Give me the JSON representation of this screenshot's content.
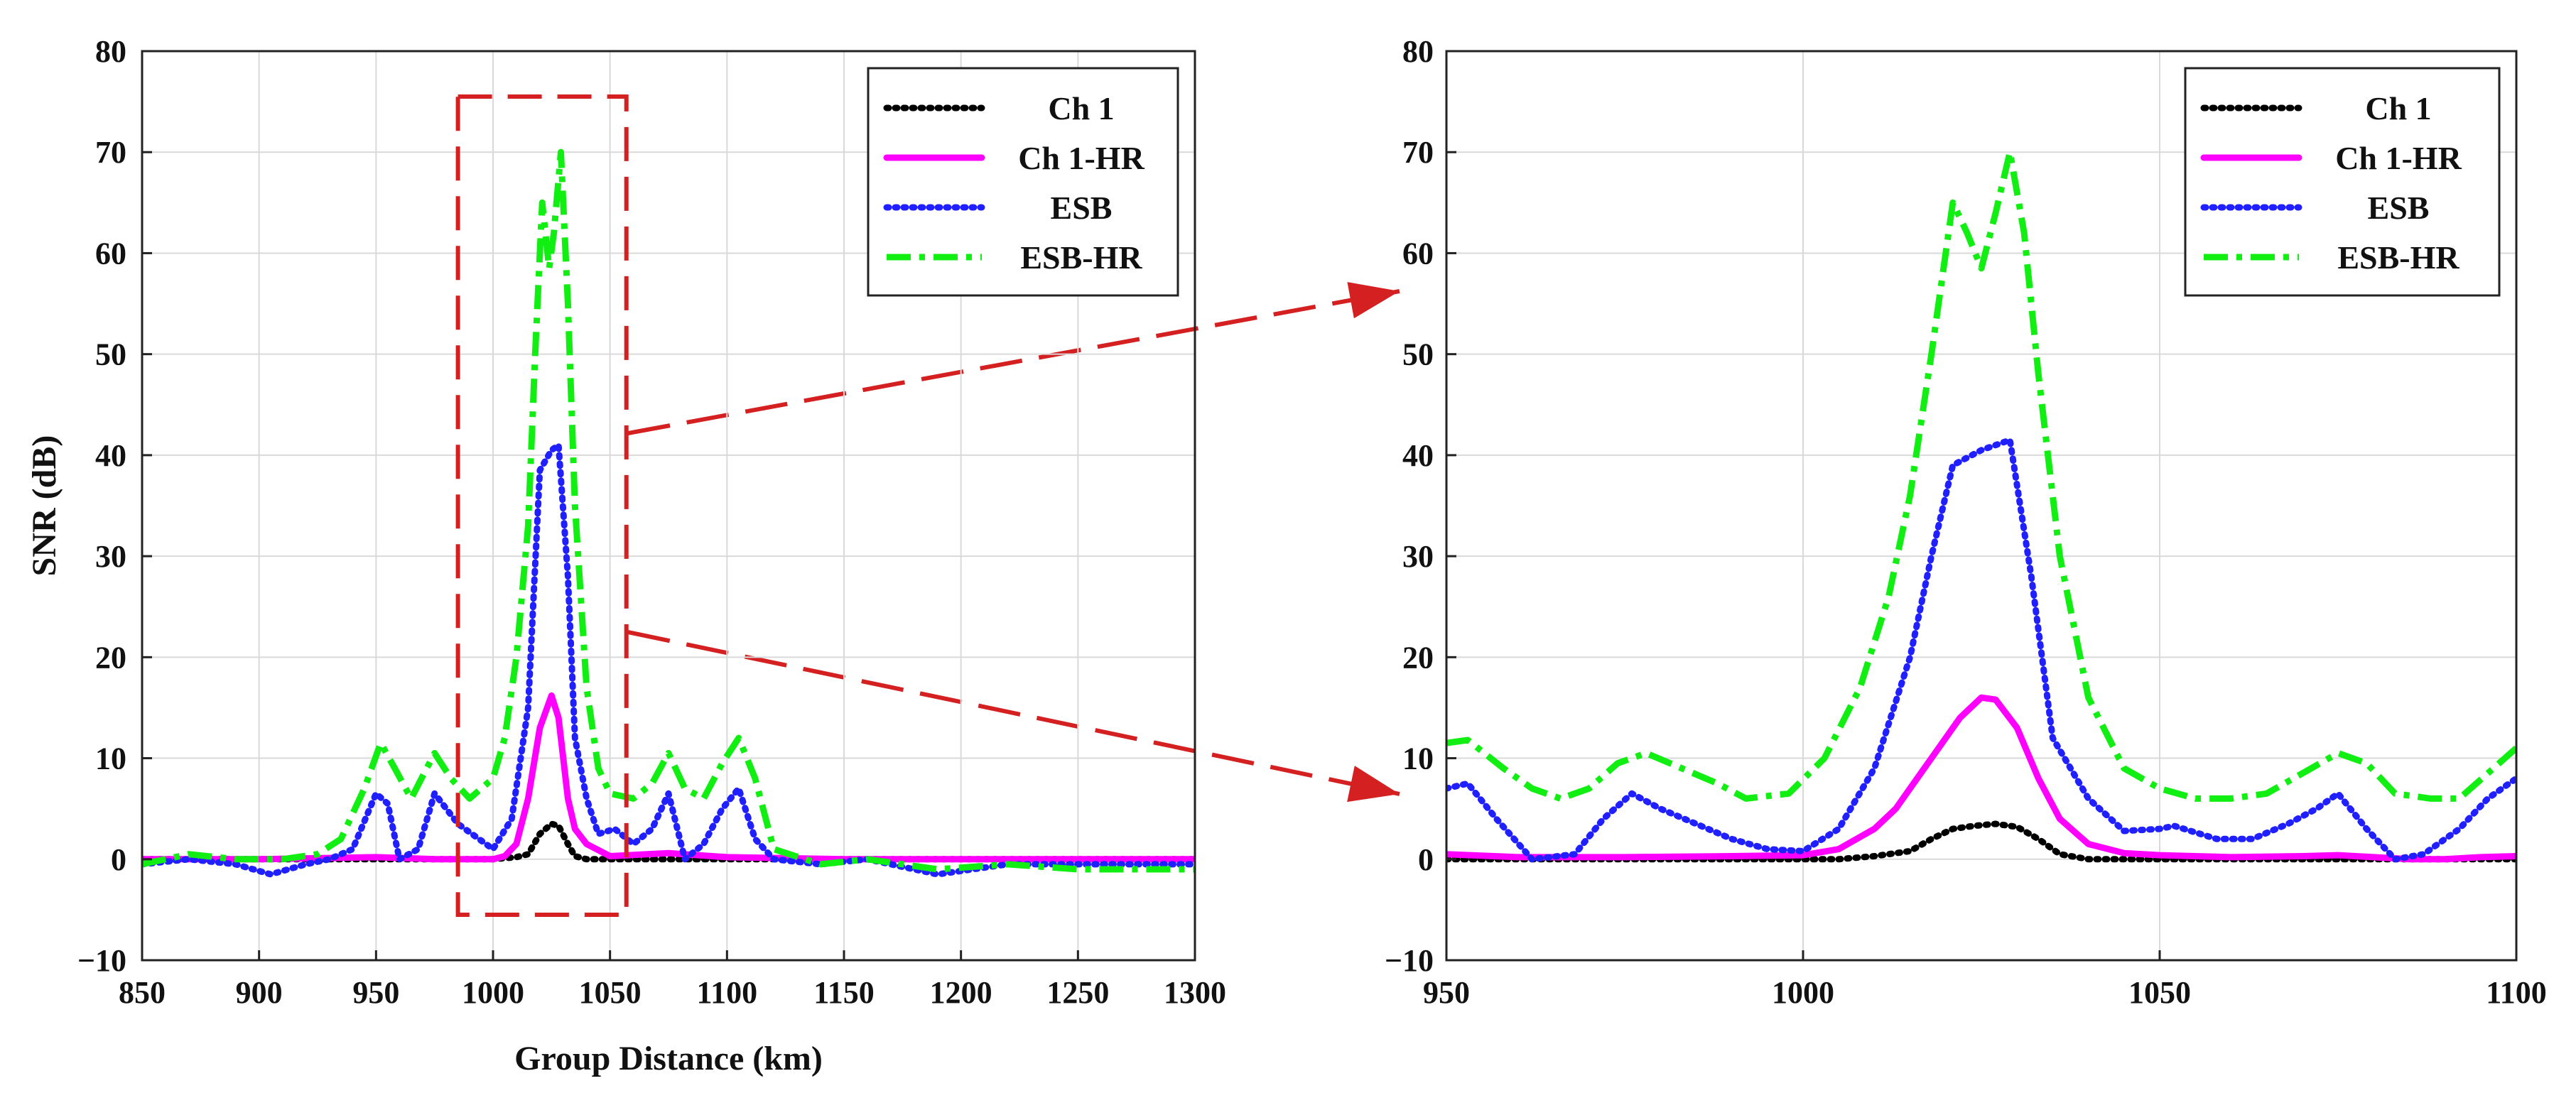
{
  "chart_data": [
    {
      "type": "line",
      "title": "",
      "xlabel": "Group Distance (km)",
      "ylabel": "SNR (dB)",
      "xlim": [
        850,
        1300
      ],
      "ylim": [
        -10,
        80
      ],
      "xticks": [
        "850",
        "900",
        "950",
        "1000",
        "1050",
        "1100",
        "1150",
        "1200",
        "1250",
        "1300"
      ],
      "yticks": [
        "−10",
        "0",
        "10",
        "20",
        "30",
        "40",
        "50",
        "60",
        "70",
        "80"
      ],
      "grid": true,
      "legend": "top-right",
      "zoom_box": {
        "x_range": [
          985,
          1057
        ],
        "y_range": [
          -5.5,
          75.5
        ],
        "color": "#d42020"
      },
      "series": [
        {
          "name": "Ch 1",
          "color": "#000000",
          "style": "dotted",
          "x": [
            850,
            900,
            950,
            1000,
            1010,
            1015,
            1020,
            1025,
            1028,
            1032,
            1035,
            1040,
            1050,
            1100,
            1150,
            1200,
            1250,
            1300
          ],
          "y": [
            0,
            0,
            0,
            0,
            0.2,
            0.5,
            2.5,
            3.5,
            3.3,
            1.5,
            0.3,
            0,
            0,
            0,
            0,
            0,
            0,
            0
          ]
        },
        {
          "name": "Ch 1-HR",
          "color": "#ff00ff",
          "style": "solid",
          "x": [
            850,
            900,
            950,
            975,
            1000,
            1005,
            1010,
            1015,
            1020,
            1025,
            1028,
            1032,
            1035,
            1040,
            1050,
            1075,
            1100,
            1150,
            1200,
            1250,
            1300
          ],
          "y": [
            0,
            0,
            0.2,
            0,
            0,
            0.3,
            1.5,
            6,
            13,
            16.2,
            14,
            6,
            3,
            1.5,
            0.3,
            0.6,
            0.2,
            0,
            0,
            0,
            0
          ]
        },
        {
          "name": "ESB",
          "color": "#1f1fff",
          "style": "dotted",
          "x": [
            850,
            870,
            890,
            905,
            920,
            930,
            940,
            950,
            955,
            960,
            968,
            975,
            985,
            1000,
            1008,
            1015,
            1020,
            1025,
            1028,
            1032,
            1035,
            1040,
            1045,
            1052,
            1060,
            1068,
            1075,
            1082,
            1090,
            1098,
            1105,
            1112,
            1120,
            1140,
            1160,
            1190,
            1220,
            1250,
            1280,
            1300
          ],
          "y": [
            -0.5,
            0,
            -0.5,
            -1.5,
            -0.5,
            0,
            1,
            6.5,
            5.5,
            0,
            1,
            6.5,
            3.5,
            1,
            4,
            15,
            38.5,
            40.5,
            41,
            28,
            12,
            6,
            2.5,
            3,
            1.5,
            3,
            6.5,
            0,
            1.5,
            5,
            7,
            2,
            0,
            -0.5,
            0,
            -1.5,
            -0.5,
            -0.5,
            -0.5,
            -0.5
          ]
        },
        {
          "name": "ESB-HR",
          "color": "#11ee11",
          "style": "dashdot",
          "x": [
            850,
            870,
            890,
            910,
            925,
            935,
            945,
            952,
            958,
            965,
            975,
            982,
            990,
            1000,
            1005,
            1010,
            1015,
            1018,
            1021,
            1024,
            1026,
            1029,
            1032,
            1035,
            1040,
            1045,
            1050,
            1060,
            1068,
            1075,
            1082,
            1090,
            1098,
            1105,
            1112,
            1120,
            1140,
            1160,
            1190,
            1220,
            1250,
            1280,
            1300
          ],
          "y": [
            -0.5,
            0.5,
            0,
            0,
            0.5,
            2,
            7,
            11.5,
            9,
            6,
            10.5,
            8,
            6,
            8,
            12,
            20,
            33,
            50,
            65,
            58.5,
            62,
            70,
            55,
            35,
            17,
            9,
            6.5,
            6,
            7.5,
            10.5,
            7,
            6,
            9.5,
            12,
            8,
            1,
            -0.5,
            0,
            -1,
            -0.5,
            -1,
            -1,
            -1
          ]
        }
      ]
    },
    {
      "type": "line",
      "title": "",
      "xlabel": "",
      "ylabel": "",
      "xlim": [
        950,
        1100
      ],
      "ylim": [
        -10,
        80
      ],
      "xticks": [
        "950",
        "1000",
        "1050",
        "1100"
      ],
      "yticks": [
        "−10",
        "0",
        "10",
        "20",
        "30",
        "40",
        "50",
        "60",
        "70",
        "80"
      ],
      "grid": true,
      "legend": "top-right",
      "series": [
        {
          "name": "Ch 1",
          "color": "#000000",
          "style": "dotted",
          "x": [
            950,
            965,
            980,
            995,
            1005,
            1010,
            1015,
            1018,
            1021,
            1024,
            1027,
            1030,
            1033,
            1036,
            1040,
            1050,
            1065,
            1080,
            1095,
            1100
          ],
          "y": [
            0,
            0,
            0,
            0,
            0,
            0.3,
            0.8,
            2,
            3,
            3.3,
            3.5,
            3.2,
            2,
            0.5,
            0,
            0,
            0,
            0,
            0,
            0
          ]
        },
        {
          "name": "Ch 1-HR",
          "color": "#ff00ff",
          "style": "solid",
          "x": [
            950,
            960,
            975,
            990,
            1000,
            1005,
            1010,
            1013,
            1016,
            1019,
            1022,
            1025,
            1027,
            1030,
            1033,
            1036,
            1040,
            1045,
            1050,
            1060,
            1070,
            1075,
            1080,
            1085,
            1090,
            1095,
            1100
          ],
          "y": [
            0.5,
            0.2,
            0.2,
            0.3,
            0.4,
            1,
            3,
            5,
            8,
            11,
            14,
            16,
            15.8,
            13,
            8,
            4,
            1.5,
            0.6,
            0.4,
            0.2,
            0.3,
            0.4,
            0.2,
            0,
            0,
            0.2,
            0.3
          ]
        },
        {
          "name": "ESB",
          "color": "#1f1fff",
          "style": "dotted",
          "x": [
            950,
            953,
            957,
            962,
            968,
            972,
            976,
            980,
            985,
            990,
            995,
            1000,
            1005,
            1010,
            1015,
            1018,
            1021,
            1025,
            1029,
            1032,
            1035,
            1040,
            1045,
            1050,
            1052,
            1058,
            1063,
            1068,
            1072,
            1075,
            1079,
            1083,
            1087,
            1092,
            1096,
            1100
          ],
          "y": [
            7,
            7.5,
            4,
            0,
            0.5,
            4,
            6.5,
            5,
            3.5,
            2,
            1,
            0.8,
            3,
            9,
            20,
            30,
            39,
            40.5,
            41.5,
            28,
            12,
            6,
            2.8,
            3,
            3.3,
            2,
            2,
            3.5,
            5,
            6.5,
            3,
            0,
            0.5,
            3,
            6,
            8
          ]
        },
        {
          "name": "ESB-HR",
          "color": "#11ee11",
          "style": "dashdot",
          "x": [
            950,
            953,
            958,
            962,
            966,
            970,
            974,
            978,
            983,
            988,
            992,
            998,
            1003,
            1008,
            1012,
            1015,
            1018,
            1021,
            1023,
            1025,
            1027,
            1029,
            1031,
            1033,
            1036,
            1040,
            1045,
            1050,
            1055,
            1060,
            1065,
            1070,
            1075,
            1079,
            1083,
            1088,
            1092,
            1096,
            1100
          ],
          "y": [
            11.5,
            11.8,
            9,
            7,
            6,
            7,
            9.5,
            10.5,
            9,
            7.5,
            6,
            6.5,
            10,
            17,
            26,
            36,
            50,
            65,
            62,
            58.5,
            64,
            70,
            62,
            48,
            30,
            16,
            9,
            7,
            6,
            6,
            6.5,
            8.5,
            10.5,
            9.5,
            6.5,
            6,
            6,
            8.5,
            11
          ]
        }
      ]
    }
  ],
  "legend_labels": [
    "Ch 1",
    "Ch 1-HR",
    "ESB",
    "ESB-HR"
  ],
  "right_legend_labels": [
    "Ch 1",
    "Ch 1-HR",
    "ESB",
    "ESB-HR"
  ],
  "arrow_color": "#d42020"
}
